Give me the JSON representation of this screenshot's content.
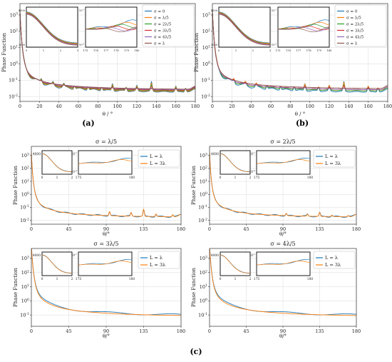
{
  "panels": {
    "a": {
      "label": "(a)"
    },
    "b": {
      "label": "(b)"
    },
    "c": {
      "label": "(c)"
    }
  },
  "colors": {
    "blue": "#1f77b4",
    "orange": "#ff7f0e",
    "green": "#2ca02c",
    "red": "#d62728",
    "purple": "#9467bd",
    "brown": "#8c564b",
    "grid": "#d9d9d9",
    "axis": "#333333"
  },
  "chart_data": [
    {
      "id": "a",
      "type": "line",
      "xlabel": "θ / °",
      "ylabel": "Phase Function",
      "xlim": [
        0,
        180
      ],
      "xticks": [
        0,
        20,
        40,
        60,
        80,
        100,
        120,
        140,
        160,
        180
      ],
      "ylim_log10": [
        -2.3,
        3.7
      ],
      "yticks": [
        "10^-2",
        "10^-1",
        "10^0",
        "10^1",
        "10^2",
        "10^3"
      ],
      "yscale": "log",
      "grid": true,
      "legend": "top-right",
      "series": [
        {
          "name": "σ = 0",
          "color": "blue"
        },
        {
          "name": "σ = λ/5",
          "color": "orange"
        },
        {
          "name": "σ = 2λ/5",
          "color": "green"
        },
        {
          "name": "σ = 3λ/5",
          "color": "red"
        },
        {
          "name": "σ = 4λ/5",
          "color": "purple"
        },
        {
          "name": "σ = λ",
          "color": "brown"
        }
      ],
      "insets": [
        {
          "xlim": [
            0,
            3
          ],
          "xticks": [
            "0",
            "1",
            "2",
            "3"
          ],
          "ytick_labels": [
            "4000",
            "2000"
          ],
          "yscale": "linear"
        },
        {
          "xlim": [
            175,
            180
          ],
          "xticks": [
            "175",
            "176",
            "177",
            "178",
            "179",
            "180"
          ],
          "ytick_labels": [
            "10^-1",
            "10^-2"
          ],
          "yscale": "log"
        }
      ]
    },
    {
      "id": "b",
      "type": "line",
      "xlabel": "θ / °",
      "ylabel": "Phase Function",
      "xlim": [
        0,
        180
      ],
      "xticks": [
        0,
        20,
        40,
        60,
        80,
        100,
        120,
        140,
        160,
        180
      ],
      "ylim_log10": [
        -2.3,
        3.7
      ],
      "yticks": [
        "10^-2",
        "10^-1",
        "10^0",
        "10^1",
        "10^2",
        "10^3"
      ],
      "yscale": "log",
      "grid": true,
      "legend": "top-right",
      "series": [
        {
          "name": "σ = 0",
          "color": "blue"
        },
        {
          "name": "σ = λ/5",
          "color": "orange"
        },
        {
          "name": "σ = 2λ/5",
          "color": "green"
        },
        {
          "name": "σ = 3λ/5",
          "color": "red"
        },
        {
          "name": "σ = 4λ/5",
          "color": "purple"
        },
        {
          "name": "σ = λ",
          "color": "brown"
        }
      ],
      "insets": [
        {
          "xlim": [
            0,
            3
          ],
          "xticks": [
            "0",
            "1",
            "2",
            "3"
          ],
          "ytick_labels": [
            "4000",
            "2000"
          ],
          "yscale": "linear"
        },
        {
          "xlim": [
            175,
            180
          ],
          "xticks": [
            "175",
            "176",
            "177",
            "178",
            "179",
            "180"
          ],
          "ytick_labels": [
            "10^-1",
            "10^-2"
          ],
          "yscale": "log"
        }
      ]
    },
    {
      "id": "c1",
      "type": "line",
      "title": "σ = λ/5",
      "xlabel": "θ/°",
      "ylabel": "Phase Function",
      "xlim": [
        0,
        180
      ],
      "xticks": [
        0,
        45,
        90,
        135,
        180
      ],
      "ylim_log10": [
        -2.3,
        3.7
      ],
      "yticks": [
        "10^-2",
        "10^-1",
        "10^0",
        "10^1",
        "10^2",
        "10^3"
      ],
      "yscale": "log",
      "grid": true,
      "legend": "top-right",
      "series": [
        {
          "name": "L = λ",
          "color": "blue"
        },
        {
          "name": "L = 3λ",
          "color": "orange"
        }
      ],
      "insets": [
        {
          "xlim": [
            0,
            2
          ],
          "xticks": [
            "0",
            "1",
            "2"
          ],
          "ytick_labels": [
            "4000"
          ],
          "yscale": "linear"
        },
        {
          "xlim": [
            175,
            180
          ],
          "xticks": [
            "175",
            "180"
          ],
          "ytick_labels": [
            "10^-1",
            "10^-2"
          ],
          "yscale": "log"
        }
      ]
    },
    {
      "id": "c2",
      "type": "line",
      "title": "σ = 2λ/5",
      "xlabel": "θ/°",
      "ylabel": "Phase Function",
      "xlim": [
        0,
        180
      ],
      "xticks": [
        0,
        45,
        90,
        135,
        180
      ],
      "ylim_log10": [
        -2.3,
        3.7
      ],
      "yticks": [
        "10^-2",
        "10^-1",
        "10^0",
        "10^1",
        "10^2",
        "10^3"
      ],
      "yscale": "log",
      "grid": true,
      "legend": "top-right",
      "series": [
        {
          "name": "L = λ",
          "color": "blue"
        },
        {
          "name": "L = 3λ",
          "color": "orange"
        }
      ],
      "insets": [
        {
          "xlim": [
            0,
            2
          ],
          "xticks": [
            "0",
            "1",
            "2"
          ],
          "ytick_labels": [
            "4000"
          ],
          "yscale": "linear"
        },
        {
          "xlim": [
            175,
            180
          ],
          "xticks": [
            "175",
            "180"
          ],
          "ytick_labels": [
            "10^-1",
            "10^-2"
          ],
          "yscale": "log"
        }
      ]
    },
    {
      "id": "c3",
      "type": "line",
      "title": "σ = 3λ/5",
      "xlabel": "θ/°",
      "ylabel": "Phase Function",
      "xlim": [
        0,
        180
      ],
      "xticks": [
        0,
        45,
        90,
        135,
        180
      ],
      "ylim_log10": [
        -1.8,
        3.7
      ],
      "yticks": [
        "10^-1",
        "10^0",
        "10^1",
        "10^2",
        "10^3"
      ],
      "yscale": "log",
      "grid": true,
      "legend": "top-right",
      "series": [
        {
          "name": "L = λ",
          "color": "blue"
        },
        {
          "name": "L = 3λ",
          "color": "orange"
        }
      ],
      "insets": [
        {
          "xlim": [
            0,
            2
          ],
          "xticks": [
            "0",
            "1",
            "2"
          ],
          "ytick_labels": [
            "4000"
          ],
          "yscale": "linear"
        },
        {
          "xlim": [
            175,
            180
          ],
          "xticks": [
            "175",
            "180"
          ],
          "ytick_labels": [
            "10^-1"
          ],
          "yscale": "log"
        }
      ]
    },
    {
      "id": "c4",
      "type": "line",
      "title": "σ = 4λ/5",
      "xlabel": "θ/°",
      "ylabel": "Phase Function",
      "xlim": [
        0,
        180
      ],
      "xticks": [
        0,
        45,
        90,
        135,
        180
      ],
      "ylim_log10": [
        -1.8,
        3.7
      ],
      "yticks": [
        "10^-1",
        "10^0",
        "10^1",
        "10^2",
        "10^3"
      ],
      "yscale": "log",
      "grid": true,
      "legend": "top-right",
      "series": [
        {
          "name": "L = λ",
          "color": "blue"
        },
        {
          "name": "L = 3λ",
          "color": "orange"
        }
      ],
      "insets": [
        {
          "xlim": [
            0,
            2
          ],
          "xticks": [
            "0",
            "1",
            "2"
          ],
          "ytick_labels": [
            "4000"
          ],
          "yscale": "linear"
        },
        {
          "xlim": [
            175,
            180
          ],
          "xticks": [
            "175",
            "180"
          ],
          "ytick_labels": [
            "10^-1"
          ],
          "yscale": "log"
        }
      ]
    }
  ]
}
